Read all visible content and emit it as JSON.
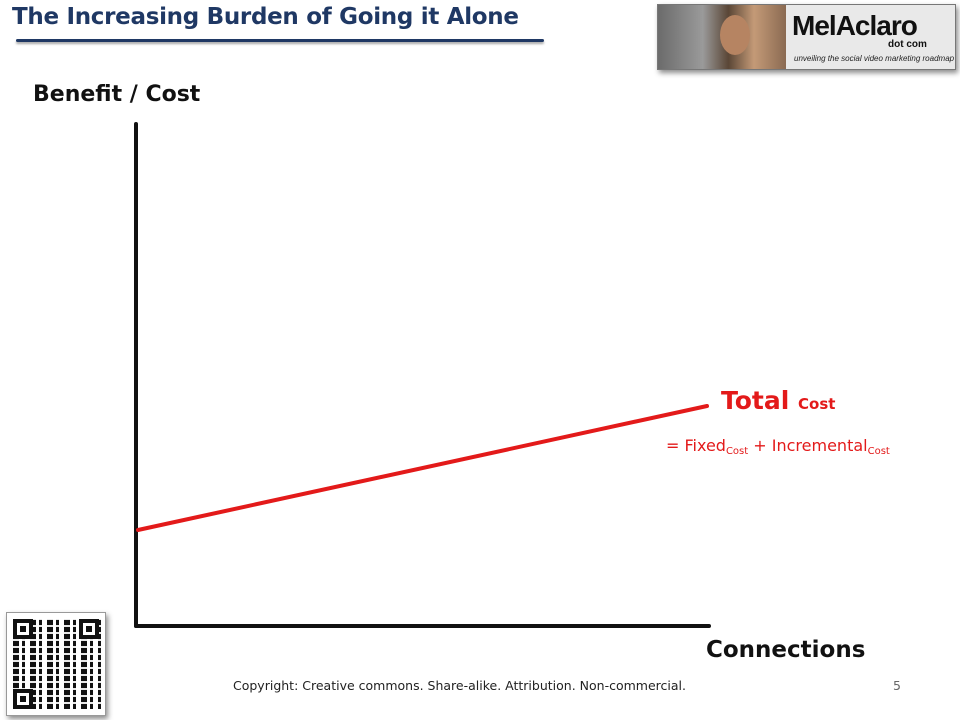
{
  "slide": {
    "title": "The Increasing Burden of Going it Alone",
    "footer": "Copyright: Creative commons.  Share-alike. Attribution. Non-commercial.",
    "page_number": "5"
  },
  "logo": {
    "brand_part1": "Mel",
    "brand_part2": "Aclaro",
    "sub": "dot com",
    "tagline": "unveiling the social video marketing roadmap"
  },
  "diagram": {
    "y_axis_label": "Benefit / Cost",
    "x_axis_label": "Connections",
    "line_label_main": "Total",
    "line_label_sub": "Cost",
    "formula": {
      "prefix": "= Fixed",
      "sub1": "Cost",
      "middle": " + Incremental",
      "sub2": "Cost"
    },
    "line_color": "#e31a1a",
    "axis_color": "#111111"
  },
  "qr_code": {
    "icon": "qr-code-icon"
  }
}
